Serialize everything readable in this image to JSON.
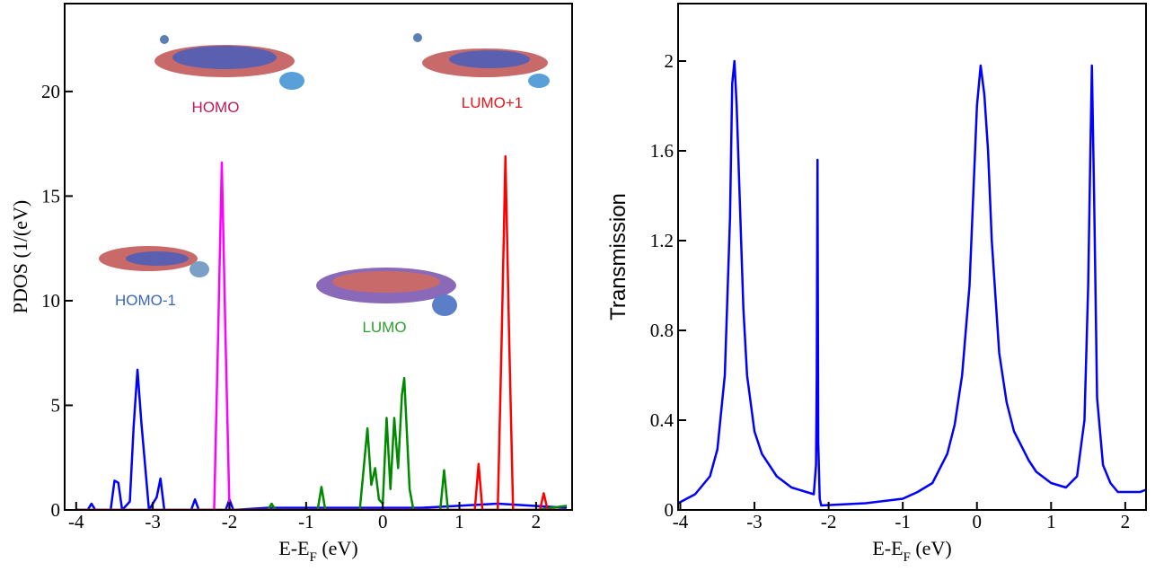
{
  "chart_data": [
    {
      "type": "line",
      "ylabel": "PDOS (1/(eV)",
      "xlabel": [
        "E-E",
        "F",
        " (eV)"
      ],
      "xlim": [
        -4.15,
        2.47
      ],
      "ylim": [
        0,
        24.2
      ],
      "xticks": [
        -4,
        -3,
        -2,
        -1,
        0,
        1,
        2
      ],
      "yticks": [
        0,
        5,
        10,
        15,
        20
      ],
      "annotations": [
        {
          "text": "HOMO",
          "color": "#c2185b"
        },
        {
          "text": "LUMO+1",
          "color": "#e8141c"
        },
        {
          "text": "HOMO-1",
          "color": "#3b66b8"
        },
        {
          "text": "LUMO",
          "color": "#2ca02c"
        }
      ],
      "series": [
        {
          "color": "#0000ff",
          "x": [
            -4,
            -3.85,
            -3.8,
            -3.75,
            -3.55,
            -3.5,
            -3.45,
            -3.4,
            -3.3,
            -3.25,
            -3.2,
            -3.15,
            -3.05,
            -2.95,
            -2.9,
            -2.85,
            -2.5,
            -2.45,
            -2.4,
            -2.05,
            -2.0,
            -1.95,
            -1.5,
            -0.8,
            0,
            0.5,
            1.5,
            2.4
          ],
          "values": [
            0,
            0,
            0.3,
            0,
            0,
            1.4,
            1.3,
            0,
            0.4,
            4,
            6.7,
            4.2,
            0,
            0.6,
            1.5,
            0,
            0,
            0.5,
            0,
            0,
            0.5,
            0,
            0.1,
            0.1,
            0.1,
            0.1,
            0.3,
            0.1
          ]
        },
        {
          "color": "#ff00ff",
          "x": [
            -4,
            -2.2,
            -2.15,
            -2.1,
            -2.05,
            -2.0,
            2.4
          ],
          "values": [
            0,
            0,
            8,
            16.6,
            8,
            0,
            0
          ]
        },
        {
          "color": "#008a00",
          "x": [
            -4,
            -1.5,
            -1.45,
            -1.4,
            -0.85,
            -0.8,
            -0.75,
            -0.3,
            -0.2,
            -0.15,
            -0.1,
            -0.05,
            0,
            0.05,
            0.1,
            0.15,
            0.2,
            0.25,
            0.28,
            0.35,
            0.4,
            0.75,
            0.8,
            0.85,
            2.0,
            2.4
          ],
          "values": [
            0,
            0,
            0.3,
            0,
            0,
            1.1,
            0,
            0,
            3.9,
            1.2,
            2,
            0.5,
            0.3,
            4.4,
            1,
            4.4,
            2,
            5.5,
            6.3,
            1,
            0,
            0,
            1.9,
            0,
            0,
            0.2
          ]
        },
        {
          "color": "#ff0000",
          "x": [
            -4,
            1.2,
            1.25,
            1.3,
            1.5,
            1.55,
            1.6,
            1.65,
            1.7,
            2.05,
            2.1,
            2.15,
            2.4
          ],
          "values": [
            0,
            0,
            2.2,
            0,
            0,
            8,
            16.9,
            8,
            0,
            0,
            0.8,
            0,
            0
          ]
        }
      ]
    },
    {
      "type": "line",
      "ylabel": "Transmission",
      "xlabel": [
        "E-E",
        "F",
        " (eV)"
      ],
      "xlim": [
        -4.03,
        2.28
      ],
      "ylim": [
        0,
        2.256
      ],
      "xticks": [
        -4,
        -3,
        -2,
        -1,
        0,
        1,
        2
      ],
      "yticks": [
        0,
        0.4,
        0.8,
        1.2,
        1.6,
        2
      ],
      "series": [
        {
          "color": "#0000ff",
          "x": [
            -4.03,
            -3.8,
            -3.6,
            -3.5,
            -3.4,
            -3.33,
            -3.3,
            -3.27,
            -3.24,
            -3.2,
            -3.15,
            -3.1,
            -3.0,
            -2.9,
            -2.7,
            -2.5,
            -2.3,
            -2.2,
            -2.17,
            -2.16,
            -2.15,
            -2.14,
            -2.12,
            -2.1,
            -1.5,
            -1.0,
            -0.8,
            -0.6,
            -0.4,
            -0.3,
            -0.2,
            -0.1,
            0,
            0.05,
            0.1,
            0.15,
            0.2,
            0.3,
            0.4,
            0.5,
            0.7,
            0.8,
            1.0,
            1.2,
            1.35,
            1.45,
            1.5,
            1.53,
            1.55,
            1.58,
            1.62,
            1.7,
            1.8,
            1.9,
            2.2,
            2.28
          ],
          "values": [
            0.03,
            0.07,
            0.15,
            0.27,
            0.6,
            1.3,
            1.9,
            2.0,
            1.8,
            1.4,
            0.9,
            0.6,
            0.35,
            0.25,
            0.15,
            0.1,
            0.08,
            0.07,
            0.2,
            0.6,
            1.56,
            0.3,
            0.05,
            0.02,
            0.03,
            0.05,
            0.08,
            0.12,
            0.25,
            0.38,
            0.6,
            1.0,
            1.8,
            1.98,
            1.85,
            1.6,
            1.2,
            0.7,
            0.48,
            0.35,
            0.22,
            0.17,
            0.12,
            0.1,
            0.15,
            0.4,
            1.0,
            1.6,
            1.98,
            1.4,
            0.5,
            0.2,
            0.12,
            0.08,
            0.08,
            0.09
          ]
        }
      ]
    }
  ]
}
